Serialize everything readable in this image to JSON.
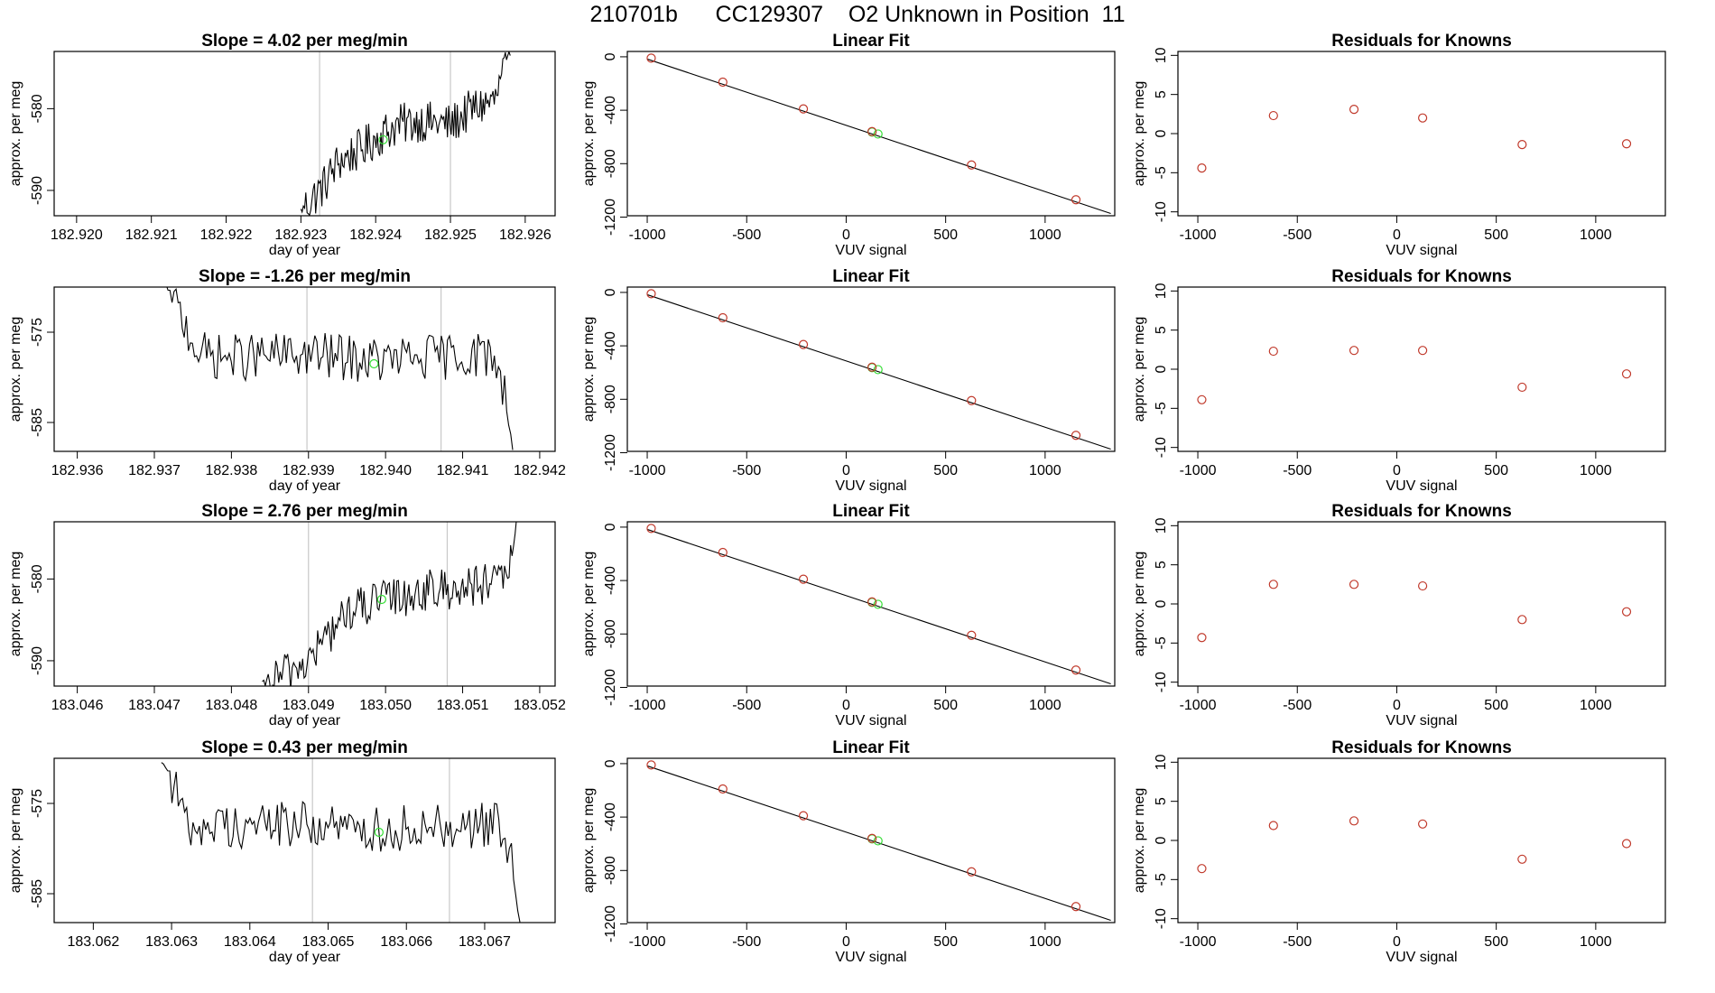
{
  "figure": {
    "title": "210701b      CC129307    O2 Unknown in Position  11"
  },
  "chart_data": [
    {
      "type": "line",
      "panel": "time-series",
      "row": 1,
      "title": "Slope =  4.02  per meg/min",
      "xlabel": "day of year",
      "ylabel": "approx. per meg",
      "xlim": [
        182.9197,
        182.9264
      ],
      "ylim": [
        -593.1,
        -573.0
      ],
      "xticks": [
        182.92,
        182.921,
        182.922,
        182.923,
        182.924,
        182.925,
        182.926
      ],
      "xtick_labels": [
        "182.920",
        "182.921",
        "182.922",
        "182.923",
        "182.924",
        "182.925",
        "182.926"
      ],
      "yticks": [
        -580,
        -590
      ],
      "ytick_labels": [
        "-580",
        "-590"
      ],
      "vlines": [
        182.92325,
        182.925
      ],
      "highlight_point": {
        "x": 182.9241,
        "y": -583.8
      },
      "series": [
        {
          "x": [
            182.923,
            182.9233,
            182.9235,
            182.9238,
            182.9241,
            182.9243,
            182.9246,
            182.925,
            182.9253,
            182.9256,
            182.9258
          ],
          "y": [
            -592.5,
            -589.5,
            -586.5,
            -585.0,
            -583.0,
            -582.0,
            -581.5,
            -582.0,
            -580.0,
            -579.0,
            -573.0
          ],
          "noise": 1.3
        }
      ]
    },
    {
      "type": "scatter",
      "panel": "linear-fit",
      "row": 1,
      "title": "Linear Fit",
      "xlabel": "VUV signal",
      "ylabel": "approx. per meg",
      "xlim": [
        -1100,
        1350
      ],
      "ylim": [
        -1190,
        40
      ],
      "xticks": [
        -1000,
        -500,
        0,
        500,
        1000
      ],
      "xtick_labels": [
        "-1000",
        "-500",
        "0",
        "500",
        "1000"
      ],
      "yticks": [
        0,
        -400,
        -800,
        -1200
      ],
      "ytick_labels": [
        "0",
        "-400",
        "-800",
        "-1200"
      ],
      "fit_line": {
        "x": [
          -1000,
          1330
        ],
        "y": [
          -17,
          -1173
        ]
      },
      "points": {
        "x": [
          -980,
          -620,
          -215,
          130,
          630,
          1155
        ],
        "y": [
          -10,
          -190,
          -390,
          -560,
          -810,
          -1070
        ]
      },
      "unknowns": {
        "x": [
          130,
          160
        ],
        "y": [
          -563,
          -578
        ]
      }
    },
    {
      "type": "scatter",
      "panel": "residuals",
      "row": 1,
      "title": "Residuals for Knowns",
      "xlabel": "VUV signal",
      "ylabel": "approx. per meg",
      "xlim": [
        -1100,
        1350
      ],
      "ylim": [
        -10.5,
        10.5
      ],
      "xticks": [
        -1000,
        -500,
        0,
        500,
        1000
      ],
      "xtick_labels": [
        "-1000",
        "-500",
        "0",
        "500",
        "1000"
      ],
      "yticks": [
        10,
        5,
        0,
        -5,
        -10
      ],
      "ytick_labels": [
        "10",
        "5",
        "0",
        "-5",
        "-10"
      ],
      "points": {
        "x": [
          -980,
          -620,
          -215,
          130,
          630,
          1155
        ],
        "y": [
          -4.4,
          2.3,
          3.1,
          2.0,
          -1.4,
          -1.3
        ]
      }
    },
    {
      "type": "line",
      "panel": "time-series",
      "row": 2,
      "title": "Slope =  -1.26  per meg/min",
      "xlabel": "day of year",
      "ylabel": "approx. per meg",
      "xlim": [
        182.9357,
        182.9422
      ],
      "ylim": [
        -588.2,
        -570.0
      ],
      "xticks": [
        182.936,
        182.937,
        182.938,
        182.939,
        182.94,
        182.941,
        182.942
      ],
      "xtick_labels": [
        "182.936",
        "182.937",
        "182.938",
        "182.939",
        "182.940",
        "182.941",
        "182.942"
      ],
      "yticks": [
        -575,
        -585
      ],
      "ytick_labels": [
        "-575",
        "-585"
      ],
      "vlines": [
        182.93898,
        182.94072
      ],
      "highlight_point": {
        "x": 182.93985,
        "y": -578.5
      },
      "series": [
        {
          "x": [
            182.93715,
            182.9373,
            182.93745,
            182.9376,
            182.938,
            182.939,
            182.94,
            182.941,
            182.9414,
            182.94155,
            182.94165
          ],
          "y": [
            -570.0,
            -572.5,
            -575.0,
            -577.5,
            -577.8,
            -577.5,
            -578.2,
            -577.5,
            -577.5,
            -582.0,
            -588.0
          ],
          "noise": 1.3
        }
      ]
    },
    {
      "type": "scatter",
      "panel": "linear-fit",
      "row": 2,
      "title": "Linear Fit",
      "xlabel": "VUV signal",
      "ylabel": "approx. per meg",
      "xlim": [
        -1100,
        1350
      ],
      "ylim": [
        -1190,
        40
      ],
      "xticks": [
        -1000,
        -500,
        0,
        500,
        1000
      ],
      "xtick_labels": [
        "-1000",
        "-500",
        "0",
        "500",
        "1000"
      ],
      "yticks": [
        0,
        -400,
        -800,
        -1200
      ],
      "ytick_labels": [
        "0",
        "-400",
        "-800",
        "-1200"
      ],
      "fit_line": {
        "x": [
          -1000,
          1330
        ],
        "y": [
          -17,
          -1173
        ]
      },
      "points": {
        "x": [
          -980,
          -620,
          -215,
          130,
          630,
          1155
        ],
        "y": [
          -10,
          -190,
          -390,
          -560,
          -810,
          -1070
        ]
      },
      "unknowns": {
        "x": [
          130,
          160
        ],
        "y": [
          -563,
          -578
        ]
      }
    },
    {
      "type": "scatter",
      "panel": "residuals",
      "row": 2,
      "title": "Residuals for Knowns",
      "xlabel": "VUV signal",
      "ylabel": "approx. per meg",
      "xlim": [
        -1100,
        1350
      ],
      "ylim": [
        -10.5,
        10.5
      ],
      "xticks": [
        -1000,
        -500,
        0,
        500,
        1000
      ],
      "xtick_labels": [
        "-1000",
        "-500",
        "0",
        "500",
        "1000"
      ],
      "yticks": [
        10,
        5,
        0,
        -5,
        -10
      ],
      "ytick_labels": [
        "10",
        "5",
        "0",
        "-5",
        "-10"
      ],
      "points": {
        "x": [
          -980,
          -620,
          -215,
          130,
          630,
          1155
        ],
        "y": [
          -3.9,
          2.3,
          2.4,
          2.4,
          -2.3,
          -0.6
        ]
      }
    },
    {
      "type": "line",
      "panel": "time-series",
      "row": 3,
      "title": "Slope =  2.76  per meg/min",
      "xlabel": "day of year",
      "ylabel": "approx. per meg",
      "xlim": [
        183.0457,
        183.0522
      ],
      "ylim": [
        -593.1,
        -573.0
      ],
      "xticks": [
        183.046,
        183.047,
        183.048,
        183.049,
        183.05,
        183.051,
        183.052
      ],
      "xtick_labels": [
        "183.046",
        "183.047",
        "183.048",
        "183.049",
        "183.050",
        "183.051",
        "183.052"
      ],
      "yticks": [
        -580,
        -590
      ],
      "ytick_labels": [
        "-580",
        "-590"
      ],
      "vlines": [
        183.049,
        183.0508
      ],
      "highlight_point": {
        "x": 183.04995,
        "y": -582.5
      },
      "series": [
        {
          "x": [
            183.0484,
            183.0487,
            183.049,
            183.0492,
            183.0495,
            183.05,
            183.0505,
            183.051,
            183.0515,
            183.0516,
            183.0517
          ],
          "y": [
            -593.0,
            -591.5,
            -590.0,
            -587.5,
            -584.0,
            -582.5,
            -581.5,
            -581.0,
            -580.5,
            -579.5,
            -573.0
          ],
          "noise": 1.3
        }
      ]
    },
    {
      "type": "scatter",
      "panel": "linear-fit",
      "row": 3,
      "title": "Linear Fit",
      "xlabel": "VUV signal",
      "ylabel": "approx. per meg",
      "xlim": [
        -1100,
        1350
      ],
      "ylim": [
        -1190,
        40
      ],
      "xticks": [
        -1000,
        -500,
        0,
        500,
        1000
      ],
      "xtick_labels": [
        "-1000",
        "-500",
        "0",
        "500",
        "1000"
      ],
      "yticks": [
        0,
        -400,
        -800,
        -1200
      ],
      "ytick_labels": [
        "0",
        "-400",
        "-800",
        "-1200"
      ],
      "fit_line": {
        "x": [
          -1000,
          1330
        ],
        "y": [
          -17,
          -1173
        ]
      },
      "points": {
        "x": [
          -980,
          -620,
          -215,
          130,
          630,
          1155
        ],
        "y": [
          -10,
          -190,
          -390,
          -560,
          -810,
          -1070
        ]
      },
      "unknowns": {
        "x": [
          130,
          160
        ],
        "y": [
          -563,
          -578
        ]
      }
    },
    {
      "type": "scatter",
      "panel": "residuals",
      "row": 3,
      "title": "Residuals for Knowns",
      "xlabel": "VUV signal",
      "ylabel": "approx. per meg",
      "xlim": [
        -1100,
        1350
      ],
      "ylim": [
        -10.5,
        10.5
      ],
      "xticks": [
        -1000,
        -500,
        0,
        500,
        1000
      ],
      "xtick_labels": [
        "-1000",
        "-500",
        "0",
        "500",
        "1000"
      ],
      "yticks": [
        10,
        5,
        0,
        -5,
        -10
      ],
      "ytick_labels": [
        "10",
        "5",
        "0",
        "-5",
        "-10"
      ],
      "points": {
        "x": [
          -980,
          -620,
          -215,
          130,
          630,
          1155
        ],
        "y": [
          -4.3,
          2.5,
          2.5,
          2.3,
          -2.0,
          -1.0
        ]
      }
    },
    {
      "type": "line",
      "panel": "time-series",
      "row": 4,
      "title": "Slope =  0.43  per meg/min",
      "xlabel": "day of year",
      "ylabel": "approx. per meg",
      "xlim": [
        183.0615,
        183.0679
      ],
      "ylim": [
        -588.2,
        -570.0
      ],
      "xticks": [
        183.062,
        183.063,
        183.064,
        183.065,
        183.066,
        183.067
      ],
      "xtick_labels": [
        "183.062",
        "183.063",
        "183.064",
        "183.065",
        "183.066",
        "183.067"
      ],
      "yticks": [
        -575,
        -585
      ],
      "ytick_labels": [
        "-575",
        "-585"
      ],
      "vlines": [
        183.0648,
        183.06655
      ],
      "highlight_point": {
        "x": 183.06565,
        "y": -578.2
      },
      "series": [
        {
          "x": [
            183.06287,
            183.063,
            183.0631,
            183.0632,
            183.0635,
            183.0645,
            183.0655,
            183.0665,
            183.0672,
            183.06735,
            183.06745
          ],
          "y": [
            -570.0,
            -572.5,
            -575.0,
            -577.5,
            -577.5,
            -577.2,
            -578.0,
            -577.3,
            -577.5,
            -582.0,
            -588.0
          ],
          "noise": 1.3
        }
      ]
    },
    {
      "type": "scatter",
      "panel": "linear-fit",
      "row": 4,
      "title": "Linear Fit",
      "xlabel": "VUV signal",
      "ylabel": "approx. per meg",
      "xlim": [
        -1100,
        1350
      ],
      "ylim": [
        -1190,
        40
      ],
      "xticks": [
        -1000,
        -500,
        0,
        500,
        1000
      ],
      "xtick_labels": [
        "-1000",
        "-500",
        "0",
        "500",
        "1000"
      ],
      "yticks": [
        0,
        -400,
        -800,
        -1200
      ],
      "ytick_labels": [
        "0",
        "-400",
        "-800",
        "-1200"
      ],
      "fit_line": {
        "x": [
          -1000,
          1330
        ],
        "y": [
          -17,
          -1173
        ]
      },
      "points": {
        "x": [
          -980,
          -620,
          -215,
          130,
          630,
          1155
        ],
        "y": [
          -10,
          -190,
          -390,
          -560,
          -810,
          -1070
        ]
      },
      "unknowns": {
        "x": [
          130,
          160
        ],
        "y": [
          -563,
          -578
        ]
      }
    },
    {
      "type": "scatter",
      "panel": "residuals",
      "row": 4,
      "title": "Residuals for Knowns",
      "xlabel": "VUV signal",
      "ylabel": "approx. per meg",
      "xlim": [
        -1100,
        1350
      ],
      "ylim": [
        -10.5,
        10.5
      ],
      "xticks": [
        -1000,
        -500,
        0,
        500,
        1000
      ],
      "xtick_labels": [
        "-1000",
        "-500",
        "0",
        "500",
        "1000"
      ],
      "yticks": [
        10,
        5,
        0,
        -5,
        -10
      ],
      "ytick_labels": [
        "10",
        "5",
        "0",
        "-5",
        "-10"
      ],
      "points": {
        "x": [
          -980,
          -620,
          -215,
          130,
          630,
          1155
        ],
        "y": [
          -3.6,
          1.9,
          2.5,
          2.1,
          -2.4,
          -0.4
        ]
      }
    }
  ]
}
